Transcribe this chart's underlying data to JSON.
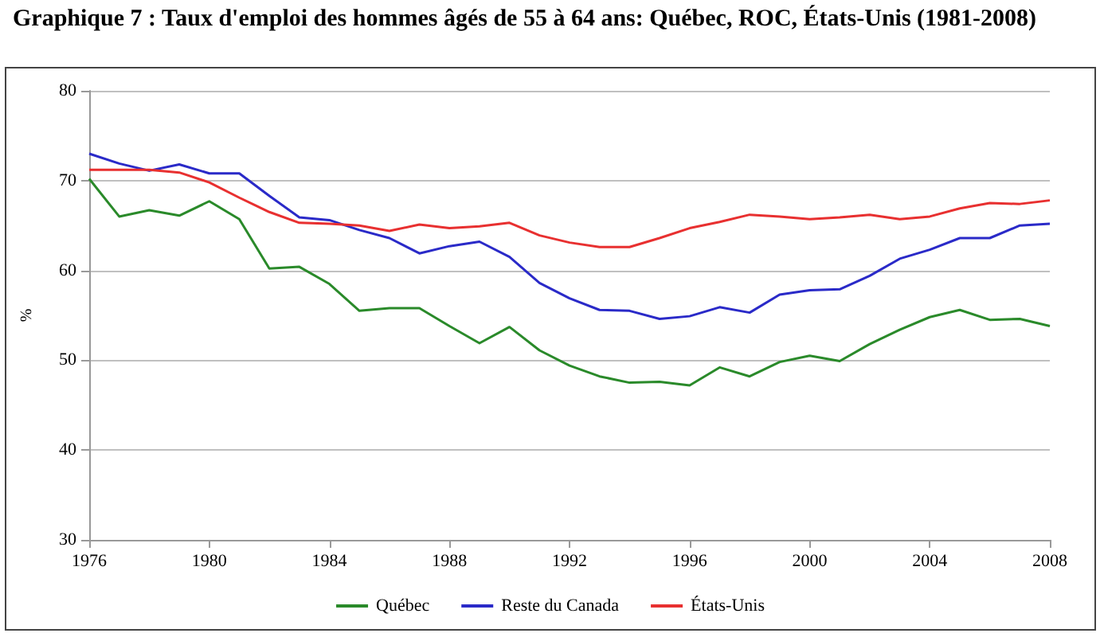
{
  "chart_data": {
    "type": "line",
    "title": "Graphique 7 : Taux d'emploi des hommes âgés de 55 à 64 ans: Québec, ROC, États-Unis (1981-2008)",
    "ylabel": "%",
    "x": [
      1976,
      1977,
      1978,
      1979,
      1980,
      1981,
      1982,
      1983,
      1984,
      1985,
      1986,
      1987,
      1988,
      1989,
      1990,
      1991,
      1992,
      1993,
      1994,
      1995,
      1996,
      1997,
      1998,
      1999,
      2000,
      2001,
      2002,
      2003,
      2004,
      2005,
      2006,
      2007,
      2008
    ],
    "series": [
      {
        "name": "Québec",
        "color": "#2a8a2a",
        "values": [
          70.2,
          66.0,
          66.7,
          66.1,
          67.7,
          65.7,
          60.2,
          60.4,
          58.5,
          55.5,
          55.8,
          55.8,
          53.8,
          51.9,
          53.7,
          51.1,
          49.4,
          48.2,
          47.5,
          47.6,
          47.2,
          49.2,
          48.2,
          49.8,
          50.5,
          49.9,
          51.8,
          53.4,
          54.8,
          55.6,
          54.5,
          54.6,
          53.8
        ]
      },
      {
        "name": "Reste du Canada",
        "color": "#2a2ac8",
        "values": [
          73.0,
          71.9,
          71.1,
          71.8,
          70.8,
          70.8,
          68.3,
          65.9,
          65.6,
          64.5,
          63.6,
          61.9,
          62.7,
          63.2,
          61.5,
          58.6,
          56.9,
          55.6,
          55.5,
          54.6,
          54.9,
          55.9,
          55.3,
          57.3,
          57.8,
          57.9,
          59.4,
          61.3,
          62.3,
          63.6,
          63.6,
          65.0,
          65.2
        ]
      },
      {
        "name": "États-Unis",
        "color": "#e83030",
        "values": [
          71.2,
          71.2,
          71.2,
          70.9,
          69.8,
          68.1,
          66.5,
          65.3,
          65.2,
          65.0,
          64.4,
          65.1,
          64.7,
          64.9,
          65.3,
          63.9,
          63.1,
          62.6,
          62.6,
          63.6,
          64.7,
          65.4,
          66.2,
          66.0,
          65.7,
          65.9,
          66.2,
          65.7,
          66.0,
          66.9,
          67.5,
          67.4,
          67.8
        ]
      }
    ],
    "xlim": [
      1976,
      2008
    ],
    "xticks": [
      1976,
      1980,
      1984,
      1988,
      1992,
      1996,
      2000,
      2004,
      2008
    ],
    "ylim": [
      30,
      80
    ],
    "yticks": [
      30,
      40,
      50,
      60,
      70,
      80
    ],
    "grid": "y",
    "legend": "bottom",
    "marker": "none",
    "line_style": "solid"
  }
}
